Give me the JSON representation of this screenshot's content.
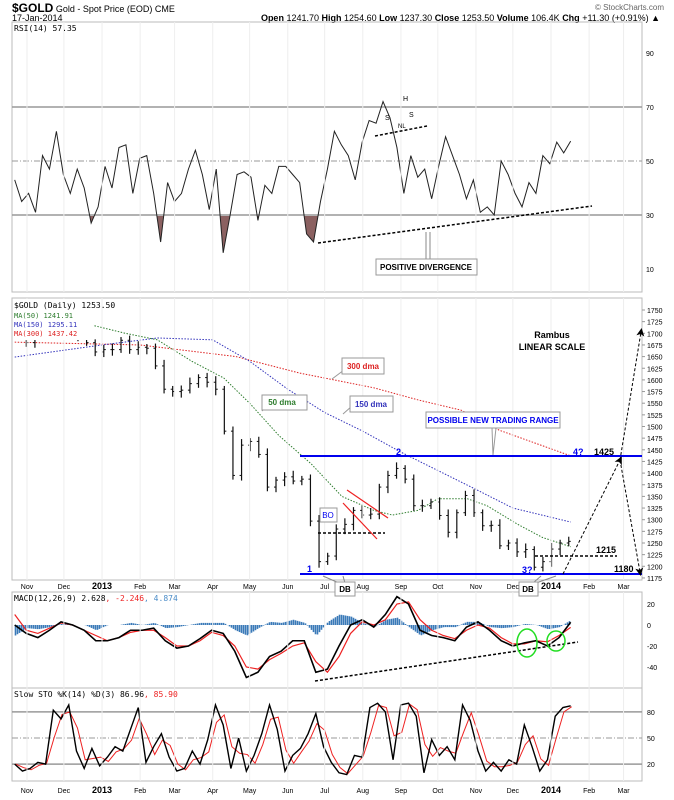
{
  "header": {
    "symbol": "$GOLD",
    "name": "Gold - Spot Price (EOD)",
    "exchange": "CME",
    "date": "17-Jan-2014",
    "copyright": "© StockCharts.com",
    "open_label": "Open",
    "open": "1241.70",
    "high_label": "High",
    "high": "1254.60",
    "low_label": "Low",
    "low": "1237.30",
    "close_label": "Close",
    "close": "1253.50",
    "volume_label": "Volume",
    "volume": "106.4K",
    "chg_label": "Chg",
    "chg": "+11.30 (+0.91%) ▲"
  },
  "colors": {
    "ma50": "#2e7d2e",
    "ma150": "#3333bb",
    "ma300": "#dd2222",
    "rsi_fill": "#8b6161",
    "hist": "#3a7ab8",
    "trendline": "#0000ee",
    "ellipse": "#22dd22"
  },
  "chart_data": [
    {
      "type": "line",
      "panel": "rsi",
      "legend": "RSI(14) 57.35",
      "yticks": [
        10,
        30,
        50,
        70,
        90
      ],
      "ylim": [
        0,
        100
      ],
      "start_date": "2012-10-22",
      "end_date": "2014-01-17",
      "values": [
        43,
        35,
        38,
        31,
        52,
        47,
        61,
        45,
        38,
        47,
        40,
        27,
        33,
        48,
        40,
        55,
        56,
        38,
        51,
        52,
        38,
        20,
        42,
        35,
        38,
        47,
        54,
        45,
        32,
        47,
        16,
        30,
        45,
        46,
        44,
        28,
        41,
        38,
        48,
        48,
        45,
        42,
        23,
        20,
        35,
        47,
        61,
        56,
        52,
        43,
        57,
        65,
        64,
        72,
        66,
        55,
        38,
        52,
        44,
        47,
        36,
        48,
        59,
        52,
        45,
        36,
        43,
        31,
        33,
        30,
        50,
        45,
        38,
        33,
        42,
        38,
        52,
        49,
        57,
        53,
        57.35
      ],
      "annotations": {
        "head": "H",
        "shoulder_left": "S",
        "shoulder_right": "S",
        "neckline": "NL",
        "callout": "POSITIVE DIVERGENCE"
      }
    },
    {
      "type": "ohlc",
      "panel": "price",
      "legend": "$GOLD (Daily) 1253.50",
      "ma_legend": [
        "MA(50) 1241.91",
        "MA(150) 1295.11",
        "MA(300) 1437.42"
      ],
      "ylim": [
        1175,
        1750
      ],
      "ytick_step": 25,
      "scale": "linear",
      "closes": [
        [
          "2012-10-22",
          1710
        ],
        [
          "2012-10-29",
          1680
        ],
        [
          "2012-11-05",
          1730
        ],
        [
          "2012-11-12",
          1715
        ],
        [
          "2012-11-19",
          1740
        ],
        [
          "2012-11-26",
          1712
        ],
        [
          "2012-12-03",
          1700
        ],
        [
          "2012-12-10",
          1696
        ],
        [
          "2012-12-17",
          1680
        ],
        [
          "2012-12-24",
          1660
        ],
        [
          "2012-12-31",
          1665
        ],
        [
          "2013-01-07",
          1665
        ],
        [
          "2013-01-14",
          1685
        ],
        [
          "2013-01-21",
          1665
        ],
        [
          "2013-01-28",
          1670
        ],
        [
          "2013-02-04",
          1668
        ],
        [
          "2013-02-11",
          1630
        ],
        [
          "2013-02-18",
          1580
        ],
        [
          "2013-02-25",
          1575
        ],
        [
          "2013-03-04",
          1578
        ],
        [
          "2013-03-11",
          1592
        ],
        [
          "2013-03-18",
          1605
        ],
        [
          "2013-03-25",
          1595
        ],
        [
          "2013-04-01",
          1580
        ],
        [
          "2013-04-08",
          1490
        ],
        [
          "2013-04-15",
          1395
        ],
        [
          "2013-04-22",
          1460
        ],
        [
          "2013-04-29",
          1468
        ],
        [
          "2013-05-06",
          1440
        ],
        [
          "2013-05-13",
          1370
        ],
        [
          "2013-05-20",
          1385
        ],
        [
          "2013-05-27",
          1392
        ],
        [
          "2013-06-03",
          1383
        ],
        [
          "2013-06-10",
          1387
        ],
        [
          "2013-06-17",
          1297
        ],
        [
          "2013-06-24",
          1210
        ],
        [
          "2013-07-01",
          1222
        ],
        [
          "2013-07-08",
          1280
        ],
        [
          "2013-07-15",
          1290
        ],
        [
          "2013-07-22",
          1320
        ],
        [
          "2013-07-29",
          1310
        ],
        [
          "2013-08-05",
          1312
        ],
        [
          "2013-08-12",
          1370
        ],
        [
          "2013-08-19",
          1395
        ],
        [
          "2013-08-26",
          1410
        ],
        [
          "2013-09-02",
          1387
        ],
        [
          "2013-09-09",
          1330
        ],
        [
          "2013-09-16",
          1330
        ],
        [
          "2013-09-23",
          1338
        ],
        [
          "2013-09-30",
          1309
        ],
        [
          "2013-10-07",
          1273
        ],
        [
          "2013-10-14",
          1315
        ],
        [
          "2013-10-21",
          1352
        ],
        [
          "2013-10-28",
          1315
        ],
        [
          "2013-11-04",
          1287
        ],
        [
          "2013-11-11",
          1288
        ],
        [
          "2013-11-18",
          1244
        ],
        [
          "2013-11-25",
          1250
        ],
        [
          "2013-12-02",
          1231
        ],
        [
          "2013-12-09",
          1236
        ],
        [
          "2013-12-16",
          1198
        ],
        [
          "2013-12-23",
          1210
        ],
        [
          "2013-12-30",
          1237
        ],
        [
          "2014-01-06",
          1250
        ],
        [
          "2014-01-13",
          1253.5
        ]
      ],
      "ma50": [
        [
          "2012-11-15",
          1735
        ],
        [
          "2012-12-20",
          1720
        ],
        [
          "2013-01-20",
          1700
        ],
        [
          "2013-02-15",
          1686
        ],
        [
          "2013-03-15",
          1640
        ],
        [
          "2013-04-10",
          1604
        ],
        [
          "2013-05-01",
          1550
        ],
        [
          "2013-05-25",
          1480
        ],
        [
          "2013-06-20",
          1420
        ],
        [
          "2013-07-15",
          1350
        ],
        [
          "2013-08-10",
          1320
        ],
        [
          "2013-08-25",
          1310
        ],
        [
          "2013-09-15",
          1320
        ],
        [
          "2013-10-01",
          1345
        ],
        [
          "2013-10-25",
          1345
        ],
        [
          "2013-11-10",
          1330
        ],
        [
          "2013-12-05",
          1290
        ],
        [
          "2013-12-25",
          1262
        ],
        [
          "2014-01-17",
          1242
        ]
      ],
      "ma150": [
        [
          "2012-10-22",
          1649
        ],
        [
          "2013-01-01",
          1675
        ],
        [
          "2013-02-15",
          1690
        ],
        [
          "2013-04-01",
          1686
        ],
        [
          "2013-05-01",
          1640
        ],
        [
          "2013-06-01",
          1580
        ],
        [
          "2013-07-01",
          1530
        ],
        [
          "2013-08-01",
          1490
        ],
        [
          "2013-09-01",
          1445
        ],
        [
          "2013-09-20",
          1420
        ],
        [
          "2013-11-01",
          1365
        ],
        [
          "2013-12-01",
          1325
        ],
        [
          "2014-01-17",
          1295
        ]
      ],
      "ma300": [
        [
          "2012-10-22",
          1681
        ],
        [
          "2013-02-01",
          1675
        ],
        [
          "2013-04-20",
          1650
        ],
        [
          "2013-06-10",
          1615
        ],
        [
          "2013-08-10",
          1583
        ],
        [
          "2013-09-15",
          1557
        ],
        [
          "2013-10-20",
          1535
        ],
        [
          "2013-11-20",
          1492
        ],
        [
          "2014-01-17",
          1437
        ]
      ],
      "annotations": {
        "author": "Rambus",
        "scale_note": "LINEAR SCALE",
        "ma300_label": "300 dma",
        "ma150_label": "150 dma",
        "ma50_label": "50 dma",
        "breakout": "BO",
        "range_label": "POSSIBLE NEW TRADING RANGE",
        "point1": "1",
        "point2": "2",
        "point3": "3?",
        "point4": "4?",
        "level_upper": "1425",
        "level_mid": "1215",
        "level_lower": "1180",
        "double_bottom_1": "DB",
        "double_bottom_2": "DB",
        "range_top_value": 1433,
        "range_bottom_value": 1182,
        "mid_value": 1218,
        "target_value": 1700
      }
    },
    {
      "type": "line",
      "panel": "macd",
      "legend_main": "MACD(12,26,9) 2.628",
      "legend_signal": ", -2.246",
      "legend_hist": ", 4.874",
      "yticks": [
        20,
        0,
        -20,
        -40
      ],
      "ylim": [
        -55,
        30
      ],
      "start_date": "2012-10-22",
      "end_date": "2014-01-17",
      "macd": [
        0,
        -8,
        -12,
        -5,
        3,
        0,
        -5,
        -15,
        -15,
        -12,
        -5,
        -5,
        -3,
        -15,
        -22,
        -20,
        -13,
        -5,
        -8,
        -25,
        -50,
        -45,
        -30,
        -25,
        -15,
        -15,
        -45,
        -42,
        -20,
        0,
        5,
        -2,
        10,
        27,
        20,
        -5,
        -10,
        -12,
        -15,
        -2,
        3,
        -5,
        -15,
        -20,
        -17,
        -15,
        -20,
        -12,
        2.628
      ],
      "signal": [
        10,
        -5,
        -8,
        -3,
        2,
        0,
        -5,
        -10,
        -15,
        -12,
        -7,
        -5,
        -5,
        -12,
        -20,
        -20,
        -15,
        -7,
        -10,
        -20,
        -40,
        -42,
        -33,
        -27,
        -20,
        -17,
        -35,
        -45,
        -30,
        -8,
        3,
        0,
        5,
        20,
        22,
        5,
        -5,
        -10,
        -13,
        -5,
        0,
        -3,
        -12,
        -18,
        -18,
        -15,
        -16,
        -10,
        -2.246
      ]
    },
    {
      "type": "line",
      "panel": "stochastic",
      "legend_main": "Slow STO %K(14) %D(3) 86.96",
      "legend_d": ", 85.90",
      "yticks": [
        20,
        50,
        80
      ],
      "ylim": [
        5,
        100
      ],
      "start_date": "2012-10-22",
      "end_date": "2014-01-17",
      "k": [
        20,
        12,
        15,
        22,
        20,
        82,
        72,
        88,
        35,
        15,
        38,
        18,
        28,
        40,
        35,
        60,
        85,
        22,
        40,
        55,
        28,
        12,
        15,
        35,
        20,
        48,
        88,
        65,
        15,
        50,
        12,
        30,
        55,
        88,
        60,
        12,
        30,
        38,
        55,
        78,
        40,
        22,
        10,
        8,
        30,
        28,
        85,
        90,
        80,
        25,
        88,
        90,
        75,
        10,
        48,
        30,
        40,
        25,
        88,
        70,
        35,
        12,
        22,
        12,
        25,
        20,
        65,
        40,
        12,
        25,
        75,
        85,
        86.96
      ]
    }
  ],
  "x_axis": {
    "months": [
      [
        "Nov",
        "2012-11-01"
      ],
      [
        "Dec",
        "2012-12-01"
      ],
      [
        "2013",
        "2013-01-01"
      ],
      [
        "Feb",
        "2013-02-01"
      ],
      [
        "Mar",
        "2013-03-01"
      ],
      [
        "Apr",
        "2013-04-01"
      ],
      [
        "May",
        "2013-05-01"
      ],
      [
        "Jun",
        "2013-06-01"
      ],
      [
        "Jul",
        "2013-07-01"
      ],
      [
        "Aug",
        "2013-08-01"
      ],
      [
        "Sep",
        "2013-09-01"
      ],
      [
        "Oct",
        "2013-10-01"
      ],
      [
        "Nov",
        "2013-11-01"
      ],
      [
        "Dec",
        "2013-12-01"
      ],
      [
        "2014",
        "2014-01-01"
      ],
      [
        "Feb",
        "2014-02-01"
      ],
      [
        "Mar",
        "2014-03-01"
      ]
    ]
  }
}
